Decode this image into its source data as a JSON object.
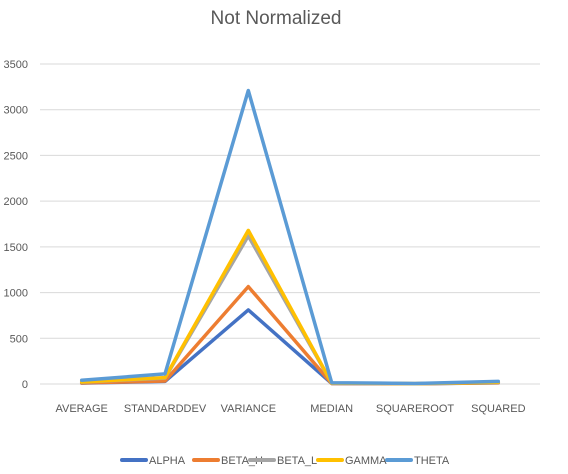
{
  "chart_data": {
    "type": "line",
    "title": "Not Normalized",
    "xlabel": "",
    "ylabel": "",
    "categories": [
      "AVERAGE",
      "STANDARDDEV",
      "VARIANCE",
      "MEDIAN",
      "SQUAREROOT",
      "SQUARED"
    ],
    "ylim": [
      0,
      3500
    ],
    "yticks": [
      "0",
      "500",
      "1000",
      "1500",
      "2000",
      "2500",
      "3000",
      "3500"
    ],
    "grid": true,
    "legend_position": "bottom",
    "series": [
      {
        "name": "ALPHA",
        "color": "#4472c4",
        "values": [
          10,
          28,
          810,
          5,
          3,
          12
        ]
      },
      {
        "name": "BETA_H",
        "color": "#ed7d31",
        "values": [
          12,
          33,
          1065,
          6,
          3,
          14
        ]
      },
      {
        "name": "BETA_L",
        "color": "#a5a5a5",
        "values": [
          20,
          65,
          1620,
          9,
          4,
          18
        ]
      },
      {
        "name": "GAMMA",
        "color": "#ffc000",
        "values": [
          22,
          70,
          1680,
          10,
          4,
          20
        ]
      },
      {
        "name": "THETA",
        "color": "#5b9bd5",
        "values": [
          42,
          110,
          3210,
          14,
          6,
          28
        ]
      }
    ]
  }
}
